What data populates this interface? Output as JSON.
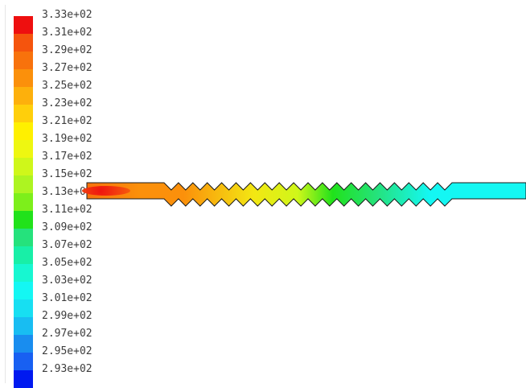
{
  "legend": {
    "entries": [
      {
        "label": "3.33e+02",
        "color": "#ee0f0f"
      },
      {
        "label": "3.31e+02",
        "color": "#f5540d"
      },
      {
        "label": "3.29e+02",
        "color": "#f8720c"
      },
      {
        "label": "3.27e+02",
        "color": "#fb900b"
      },
      {
        "label": "3.25e+02",
        "color": "#fdb00c"
      },
      {
        "label": "3.23e+02",
        "color": "#ffcf0b"
      },
      {
        "label": "3.21e+02",
        "color": "#fff000"
      },
      {
        "label": "3.19e+02",
        "color": "#eef711"
      },
      {
        "label": "3.17e+02",
        "color": "#cff71a"
      },
      {
        "label": "3.15e+02",
        "color": "#adf421"
      },
      {
        "label": "3.13e+02",
        "color": "#7def1b"
      },
      {
        "label": "3.11e+02",
        "color": "#21e21b"
      },
      {
        "label": "3.09e+02",
        "color": "#25e27c"
      },
      {
        "label": "3.07e+02",
        "color": "#18efa7"
      },
      {
        "label": "3.05e+02",
        "color": "#17f7d1"
      },
      {
        "label": "3.03e+02",
        "color": "#14f7f3"
      },
      {
        "label": "3.01e+02",
        "color": "#17dff2"
      },
      {
        "label": "2.99e+02",
        "color": "#18bdf2"
      },
      {
        "label": "2.97e+02",
        "color": "#198def"
      },
      {
        "label": "2.95e+02",
        "color": "#1860f2"
      },
      {
        "label": "2.93e+02",
        "color": "#0019f0"
      }
    ]
  },
  "contour_colors": {
    "inlet_core": "#ee0f0f",
    "inlet_warm": "#f8720c",
    "orange": "#fb900b",
    "yellow": "#f3e713",
    "yellow_green": "#cff71a",
    "green": "#21e21b",
    "green_cyan": "#25e27c",
    "cyan": "#14f7f3",
    "outline": "#1a1a1a"
  }
}
